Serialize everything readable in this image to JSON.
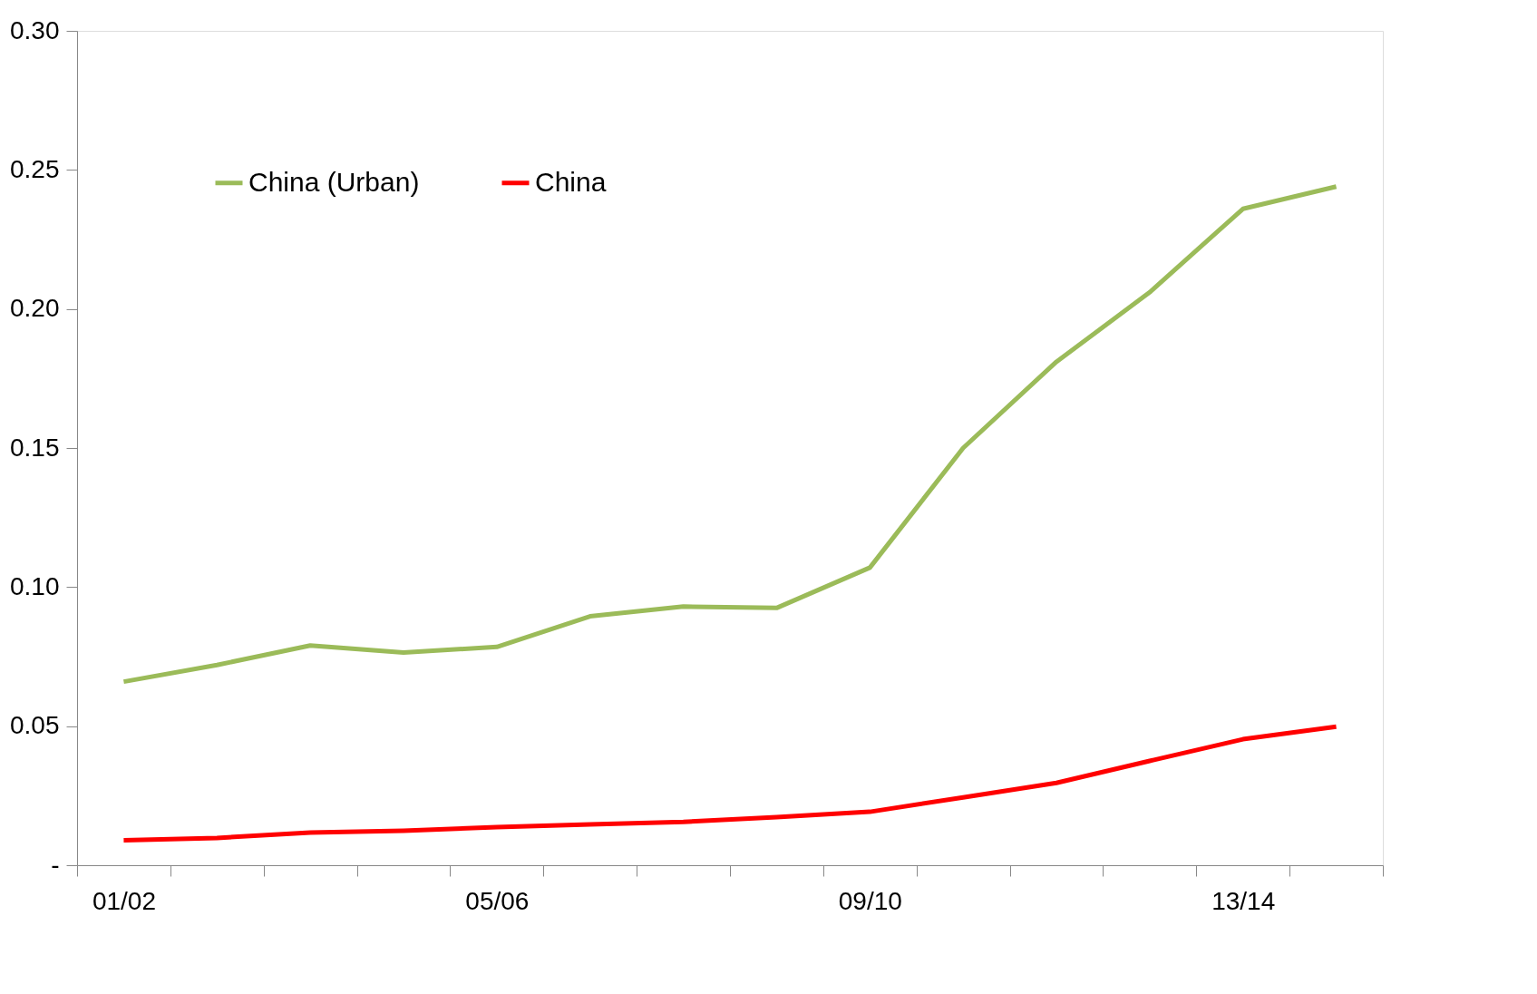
{
  "chart_data": {
    "type": "line",
    "categories": [
      "01/02",
      null,
      null,
      null,
      "05/06",
      null,
      null,
      null,
      "09/10",
      null,
      null,
      null,
      "13/14",
      null
    ],
    "series": [
      {
        "name": "China (Urban)",
        "color": "#9bbb59",
        "values": [
          0.066,
          0.072,
          0.079,
          0.0765,
          0.0785,
          0.0895,
          0.093,
          0.0925,
          0.107,
          0.15,
          0.181,
          0.206,
          0.236,
          0.244
        ]
      },
      {
        "name": "China",
        "color": "#ff0000",
        "values": [
          0.009,
          0.0098,
          0.0117,
          0.0124,
          0.0137,
          0.0147,
          0.0156,
          0.0173,
          0.0192,
          0.0244,
          0.0296,
          0.0375,
          0.0453,
          0.0498
        ]
      }
    ],
    "ylim": [
      0,
      0.3
    ],
    "yticks": [
      {
        "value": 0,
        "label": "-"
      },
      {
        "value": 0.05,
        "label": "0.05"
      },
      {
        "value": 0.1,
        "label": "0.10"
      },
      {
        "value": 0.15,
        "label": "0.15"
      },
      {
        "value": 0.2,
        "label": "0.20"
      },
      {
        "value": 0.25,
        "label": "0.25"
      },
      {
        "value": 0.3,
        "label": "0.30"
      }
    ],
    "grid": false,
    "legend": "top left",
    "marker": "none",
    "line_style": "solid"
  }
}
